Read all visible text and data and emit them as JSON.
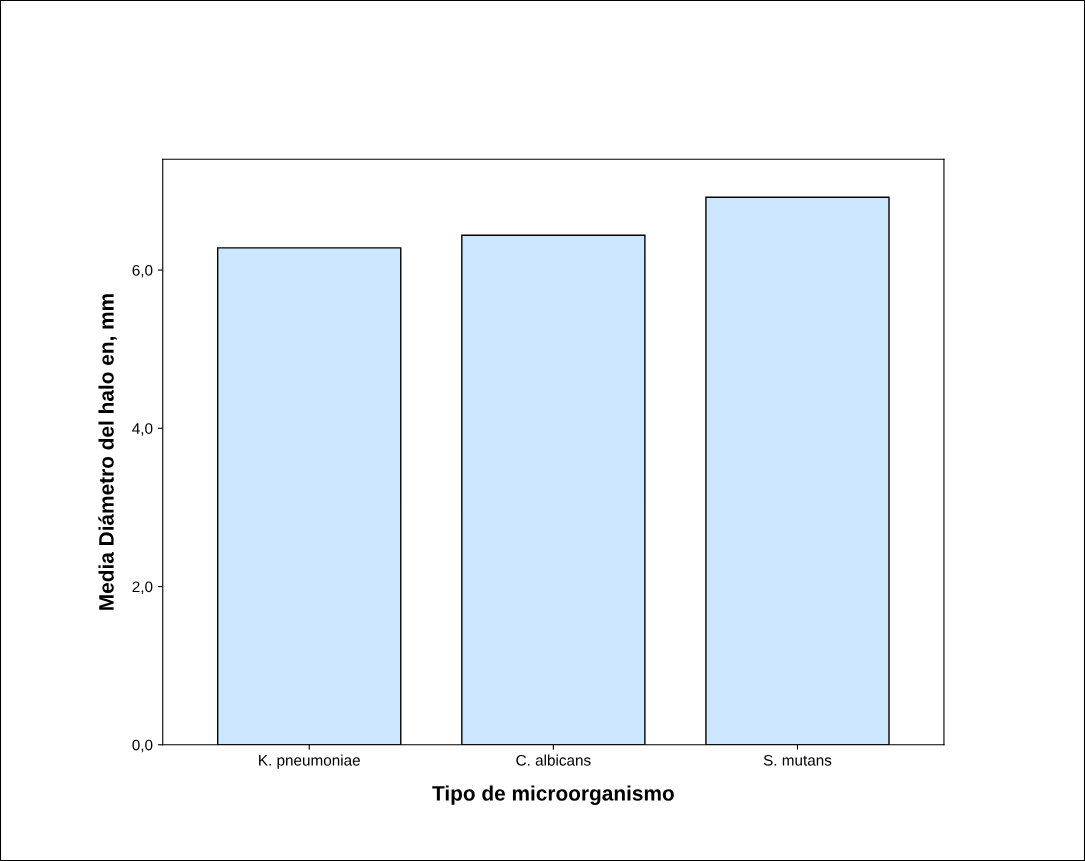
{
  "chart_data": {
    "type": "bar",
    "xlabel": "Tipo de microorganismo",
    "ylabel": "Media Diámetro del halo en, mm",
    "categories": [
      "K. pneumoniae",
      "C. albicans",
      "S. mutans"
    ],
    "values": [
      6.28,
      6.44,
      6.92
    ],
    "color": "#cce6ff",
    "ylim": [
      0,
      7.4
    ],
    "yticks": [
      {
        "value": 0,
        "label": "0,0"
      },
      {
        "value": 2,
        "label": "2,0"
      },
      {
        "value": 4,
        "label": "4,0"
      },
      {
        "value": 6,
        "label": "6,0"
      }
    ],
    "grid": false
  }
}
